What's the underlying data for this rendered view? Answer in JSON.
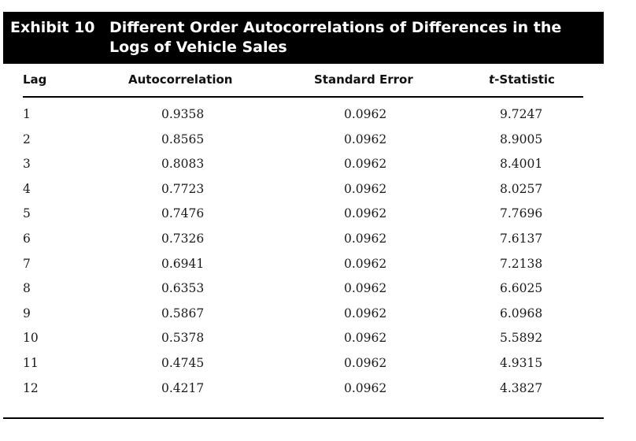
{
  "exhibit": {
    "label": "Exhibit 10",
    "title": "Different Order Autocorrelations of Differences in the Logs of Vehicle Sales"
  },
  "columns": {
    "lag": "Lag",
    "autocorrelation": "Autocorrelation",
    "standard_error": "Standard Error",
    "t_statistic_italic": "t",
    "t_statistic_rest": "-Statistic"
  },
  "rows": [
    {
      "lag": "1",
      "autocorrelation": "0.9358",
      "standard_error": "0.0962",
      "t_statistic": "9.7247"
    },
    {
      "lag": "2",
      "autocorrelation": "0.8565",
      "standard_error": "0.0962",
      "t_statistic": "8.9005"
    },
    {
      "lag": "3",
      "autocorrelation": "0.8083",
      "standard_error": "0.0962",
      "t_statistic": "8.4001"
    },
    {
      "lag": "4",
      "autocorrelation": "0.7723",
      "standard_error": "0.0962",
      "t_statistic": "8.0257"
    },
    {
      "lag": "5",
      "autocorrelation": "0.7476",
      "standard_error": "0.0962",
      "t_statistic": "7.7696"
    },
    {
      "lag": "6",
      "autocorrelation": "0.7326",
      "standard_error": "0.0962",
      "t_statistic": "7.6137"
    },
    {
      "lag": "7",
      "autocorrelation": "0.6941",
      "standard_error": "0.0962",
      "t_statistic": "7.2138"
    },
    {
      "lag": "8",
      "autocorrelation": "0.6353",
      "standard_error": "0.0962",
      "t_statistic": "6.6025"
    },
    {
      "lag": "9",
      "autocorrelation": "0.5867",
      "standard_error": "0.0962",
      "t_statistic": "6.0968"
    },
    {
      "lag": "10",
      "autocorrelation": "0.5378",
      "standard_error": "0.0962",
      "t_statistic": "5.5892"
    },
    {
      "lag": "11",
      "autocorrelation": "0.4745",
      "standard_error": "0.0962",
      "t_statistic": "4.9315"
    },
    {
      "lag": "12",
      "autocorrelation": "0.4217",
      "standard_error": "0.0962",
      "t_statistic": "4.3827"
    }
  ]
}
